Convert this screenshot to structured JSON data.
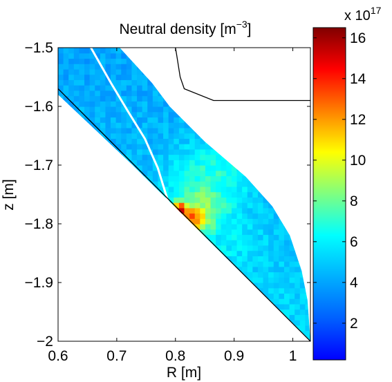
{
  "chart_data": {
    "type": "heatmap",
    "title_main": "Neutral density [m",
    "title_exp": "−3",
    "title_tail": "]",
    "xlabel": "R [m]",
    "ylabel": "z [m]",
    "xlim": [
      0.6,
      1.03
    ],
    "ylim": [
      -2.0,
      -1.5
    ],
    "x_ticks": [
      0.6,
      0.7,
      0.8,
      0.9,
      1.0
    ],
    "x_tick_labels": [
      "0.6",
      "0.7",
      "0.8",
      "0.9",
      "1"
    ],
    "y_ticks": [
      -1.5,
      -1.6,
      -1.7,
      -1.8,
      -1.9,
      -2.0
    ],
    "y_tick_labels": [
      "−1.5",
      "−1.6",
      "−1.7",
      "−1.8",
      "−1.9",
      "−2"
    ],
    "colorbar": {
      "min": 0.2,
      "max": 16.5,
      "ticks": [
        2,
        4,
        6,
        8,
        10,
        12,
        14,
        16
      ],
      "tick_labels": [
        "2",
        "4",
        "6",
        "8",
        "10",
        "12",
        "14",
        "16"
      ],
      "multiplier_base": "x 10",
      "multiplier_exp": "17"
    },
    "colormap": "jet",
    "domain_outline": {
      "outer_boundary": [
        [
          0.6,
          -1.5
        ],
        [
          0.705,
          -1.5
        ],
        [
          0.76,
          -1.56
        ],
        [
          0.79,
          -1.6
        ],
        [
          0.85,
          -1.66
        ],
        [
          0.92,
          -1.72
        ],
        [
          0.965,
          -1.77
        ],
        [
          0.995,
          -1.82
        ],
        [
          1.015,
          -1.88
        ],
        [
          1.025,
          -1.93
        ],
        [
          1.03,
          -2.0
        ]
      ],
      "inner_boundary": [
        [
          1.03,
          -2.0
        ],
        [
          0.727,
          -1.7
        ],
        [
          0.6,
          -1.58
        ]
      ],
      "separatrix": [
        [
          0.656,
          -1.5
        ],
        [
          0.69,
          -1.56
        ],
        [
          0.72,
          -1.61
        ],
        [
          0.748,
          -1.655
        ],
        [
          0.77,
          -1.705
        ],
        [
          0.79,
          -1.77
        ]
      ],
      "divertor_wall": [
        [
          0.6,
          -1.57
        ],
        [
          0.727,
          -1.697
        ],
        [
          1.03,
          -2.0
        ]
      ],
      "baffle_wall": [
        [
          0.8,
          -1.5
        ],
        [
          0.802,
          -1.512
        ],
        [
          0.808,
          -1.55
        ],
        [
          0.815,
          -1.57
        ],
        [
          0.865,
          -1.59
        ],
        [
          1.03,
          -1.59
        ]
      ]
    },
    "background_density": 4.0,
    "peak_density": 16.5,
    "hotspots": [
      {
        "r": 0.808,
        "z": -1.775,
        "value": 16.5,
        "spread_r": 0.012,
        "spread_z": 0.012
      },
      {
        "r": 0.83,
        "z": -1.79,
        "value": 13.0,
        "spread_r": 0.03,
        "spread_z": 0.025
      },
      {
        "r": 0.845,
        "z": -1.765,
        "value": 8.5,
        "spread_r": 0.05,
        "spread_z": 0.05
      },
      {
        "r": 0.86,
        "z": -1.72,
        "value": 7.0,
        "spread_r": 0.06,
        "spread_z": 0.06
      },
      {
        "r": 0.88,
        "z": -1.83,
        "value": 6.0,
        "spread_r": 0.06,
        "spread_z": 0.04
      }
    ]
  }
}
